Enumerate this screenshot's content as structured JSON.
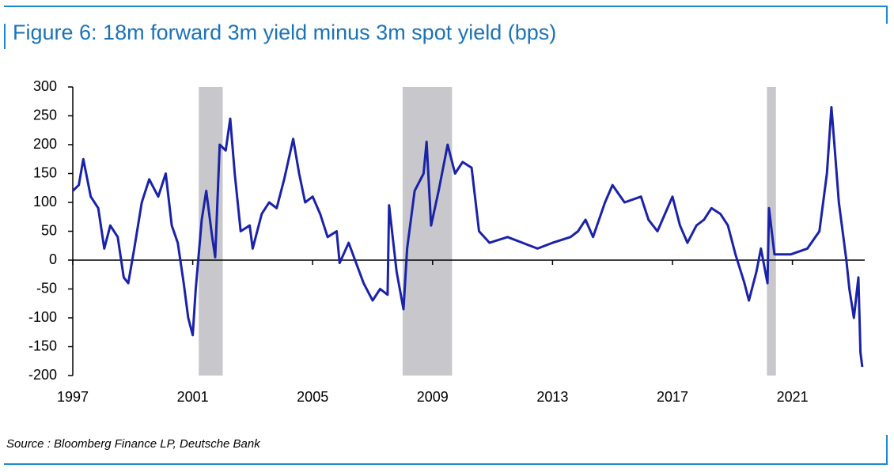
{
  "chart_data": {
    "type": "line",
    "title": "Figure 6: 18m forward 3m yield minus 3m spot yield (bps)",
    "source": "Source : Bloomberg Finance LP, Deutsche Bank",
    "color": "#1a22a8",
    "shade_color": "#c8c8cc",
    "recessions": [
      [
        2001.2,
        2002.0
      ],
      [
        2008.0,
        2009.65
      ],
      [
        2020.15,
        2020.45
      ]
    ],
    "x": [
      1997.0,
      1997.2,
      1997.35,
      1997.6,
      1997.85,
      1998.05,
      1998.25,
      1998.5,
      1998.7,
      1998.85,
      1999.05,
      1999.3,
      1999.55,
      1999.85,
      2000.1,
      2000.3,
      2000.5,
      2000.7,
      2000.85,
      2001.0,
      2001.1,
      2001.3,
      2001.45,
      2001.65,
      2001.75,
      2001.9,
      2002.1,
      2002.25,
      2002.4,
      2002.6,
      2002.9,
      2003.0,
      2003.3,
      2003.55,
      2003.8,
      2004.05,
      2004.35,
      2004.55,
      2004.75,
      2005.0,
      2005.25,
      2005.5,
      2005.8,
      2005.9,
      2006.2,
      2006.7,
      2007.0,
      2007.25,
      2007.5,
      2007.55,
      2007.8,
      2008.03,
      2008.15,
      2008.4,
      2008.7,
      2008.8,
      2008.95,
      2009.2,
      2009.5,
      2009.75,
      2010.0,
      2010.3,
      2010.55,
      2010.9,
      2011.5,
      2012.0,
      2012.5,
      2013.0,
      2013.6,
      2013.85,
      2014.1,
      2014.35,
      2014.75,
      2015.0,
      2015.4,
      2015.95,
      2016.2,
      2016.5,
      2017.0,
      2017.25,
      2017.5,
      2017.8,
      2018.05,
      2018.3,
      2018.6,
      2018.85,
      2019.1,
      2019.4,
      2019.55,
      2019.8,
      2019.95,
      2020.17,
      2020.22,
      2020.4,
      2020.95,
      2021.5,
      2021.9,
      2022.15,
      2022.3,
      2022.4,
      2022.55,
      2022.65,
      2022.8,
      2022.9,
      2023.05,
      2023.2,
      2023.27,
      2023.33
    ],
    "values": [
      120,
      130,
      175,
      110,
      90,
      20,
      60,
      40,
      -30,
      -40,
      20,
      100,
      140,
      110,
      150,
      60,
      30,
      -40,
      -100,
      -130,
      -50,
      70,
      120,
      40,
      5,
      200,
      190,
      245,
      150,
      50,
      60,
      20,
      80,
      100,
      90,
      140,
      210,
      150,
      100,
      110,
      80,
      40,
      50,
      -5,
      30,
      -40,
      -70,
      -50,
      -60,
      95,
      -20,
      -85,
      20,
      120,
      150,
      205,
      60,
      120,
      200,
      150,
      170,
      160,
      50,
      30,
      40,
      30,
      20,
      30,
      40,
      50,
      70,
      40,
      100,
      130,
      100,
      110,
      70,
      50,
      110,
      60,
      30,
      60,
      70,
      90,
      80,
      60,
      10,
      -40,
      -70,
      -20,
      20,
      -40,
      90,
      10,
      10,
      20,
      50,
      150,
      265,
      200,
      100,
      60,
      0,
      -50,
      -100,
      -30,
      -160,
      -185
    ],
    "xlim": [
      1997,
      2023.4
    ],
    "xticks": [
      1997,
      2001,
      2005,
      2009,
      2013,
      2017,
      2021
    ],
    "ylim": [
      -200,
      300
    ],
    "yticks": [
      -200,
      -150,
      -100,
      -50,
      0,
      50,
      100,
      150,
      200,
      250,
      300
    ]
  }
}
